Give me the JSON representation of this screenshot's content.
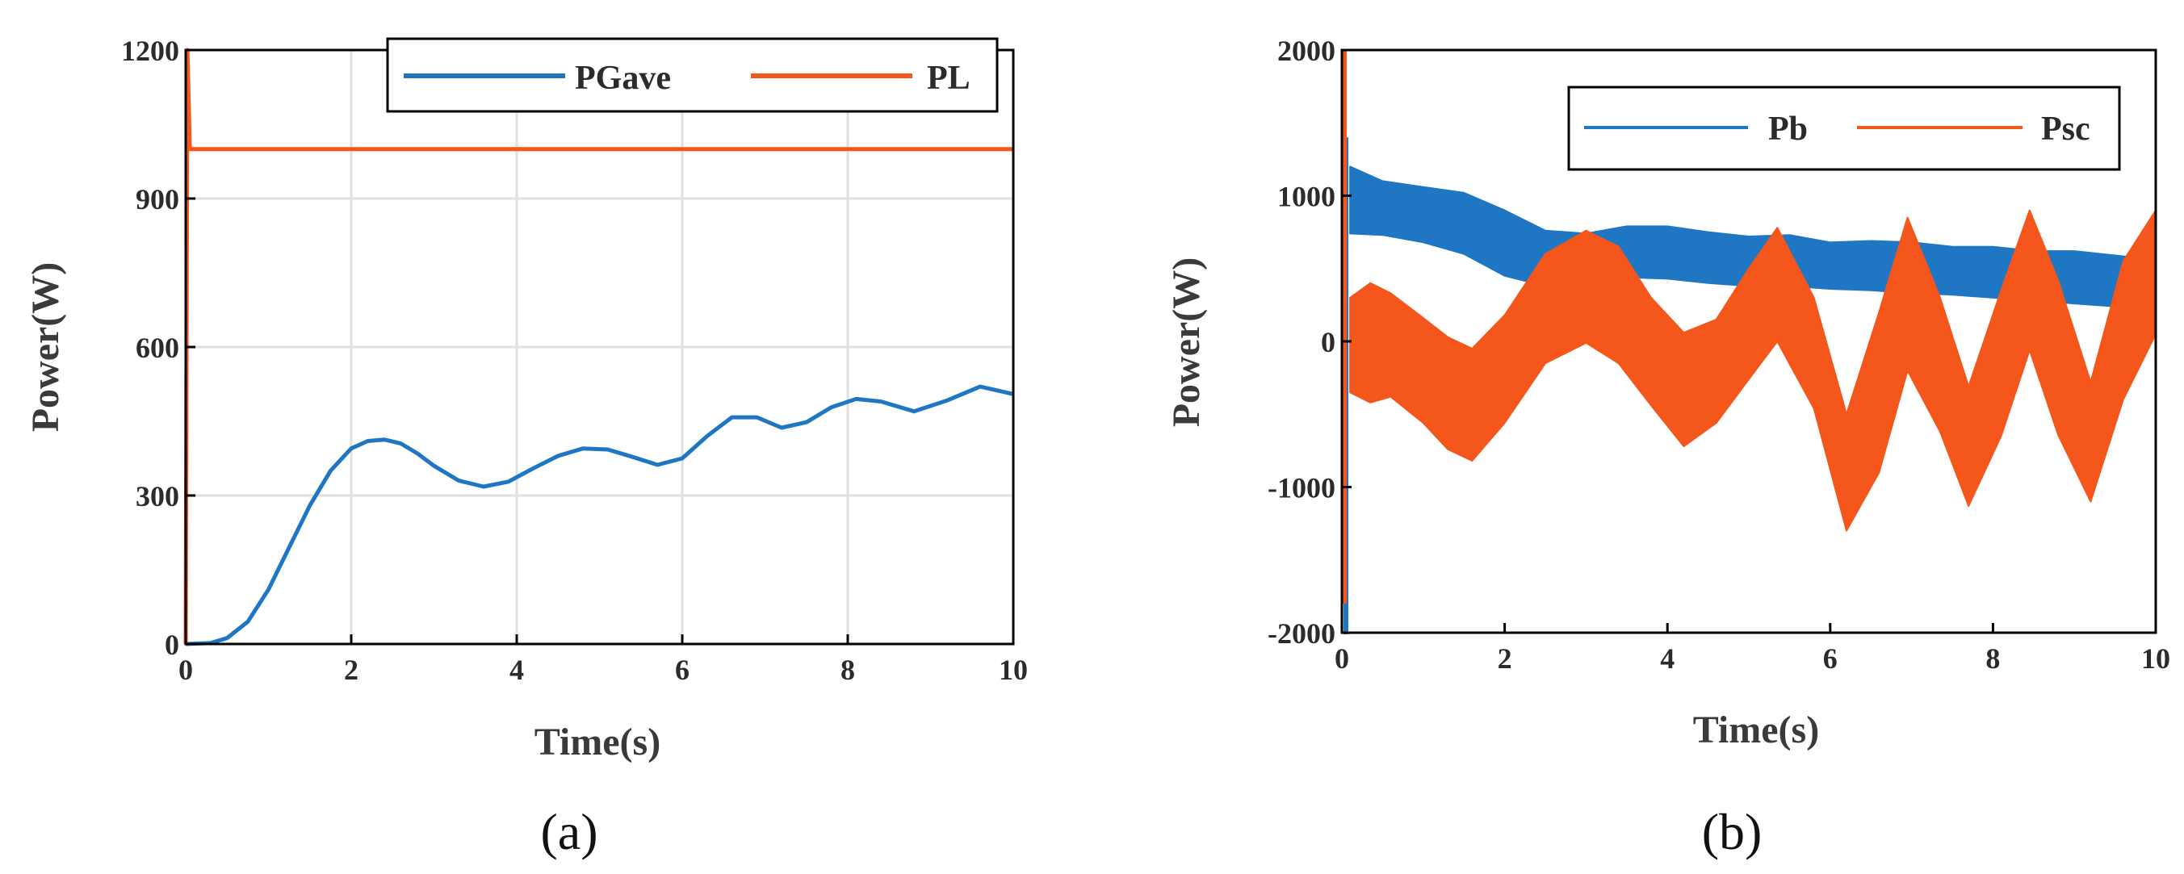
{
  "figure": {
    "colors": {
      "blue": "#1f77c4",
      "orange": "#f4561b",
      "grid": "#e0e0e0",
      "axis": "#000000"
    }
  },
  "chart_data": [
    {
      "type": "line",
      "panel_label": "(a)",
      "xlabel": "Time(s)",
      "ylabel": "Power(W)",
      "xlim": [
        0,
        10
      ],
      "ylim": [
        0,
        1200
      ],
      "xticks": [
        0,
        2,
        4,
        6,
        8,
        10
      ],
      "yticks": [
        0,
        300,
        600,
        900,
        1200
      ],
      "grid": true,
      "legend": {
        "placement": "top",
        "entries": [
          "PGave",
          "PL"
        ]
      },
      "series": [
        {
          "name": "PGave",
          "color": "#1f77c4",
          "x": [
            0,
            0.3,
            0.5,
            0.75,
            1.0,
            1.25,
            1.5,
            1.75,
            2.0,
            2.2,
            2.4,
            2.6,
            2.8,
            3.0,
            3.3,
            3.6,
            3.9,
            4.2,
            4.5,
            4.8,
            5.1,
            5.4,
            5.7,
            6.0,
            6.3,
            6.6,
            6.9,
            7.2,
            7.5,
            7.8,
            8.1,
            8.4,
            8.8,
            9.2,
            9.6,
            10.0
          ],
          "y": [
            0,
            2,
            12,
            45,
            110,
            195,
            280,
            350,
            395,
            410,
            413,
            405,
            385,
            360,
            330,
            318,
            328,
            355,
            380,
            395,
            393,
            378,
            362,
            375,
            420,
            458,
            458,
            437,
            448,
            478,
            495,
            490,
            470,
            492,
            520,
            505
          ]
        },
        {
          "name": "PL",
          "color": "#f4561b",
          "x": [
            0,
            0.02,
            0.05,
            0.1,
            10.0
          ],
          "y": [
            0,
            1200,
            1000,
            1000,
            1000
          ]
        }
      ]
    },
    {
      "type": "line",
      "panel_label": "(b)",
      "xlabel": "Time(s)",
      "ylabel": "Power(W)",
      "xlim": [
        0,
        10
      ],
      "ylim": [
        -2000,
        2000
      ],
      "xticks": [
        0,
        2,
        4,
        6,
        8,
        10
      ],
      "yticks": [
        -2000,
        -1000,
        0,
        1000,
        2000
      ],
      "grid": false,
      "legend": {
        "placement": "top-right",
        "entries": [
          "Pb",
          "Psc"
        ]
      },
      "series": [
        {
          "name": "Pb",
          "color": "#1f77c4",
          "x": [
            0.1,
            0.5,
            1.0,
            1.5,
            2.0,
            2.5,
            3.0,
            3.5,
            4.0,
            4.5,
            5.0,
            5.5,
            6.0,
            6.5,
            7.0,
            7.5,
            8.0,
            8.5,
            9.0,
            9.5,
            10.0
          ],
          "upper": [
            1200,
            1100,
            1060,
            1020,
            900,
            760,
            740,
            790,
            790,
            750,
            720,
            730,
            680,
            690,
            680,
            650,
            650,
            620,
            620,
            590,
            560
          ],
          "lower": [
            740,
            730,
            680,
            600,
            450,
            380,
            400,
            440,
            430,
            400,
            380,
            380,
            360,
            350,
            330,
            320,
            300,
            280,
            260,
            240,
            220
          ]
        },
        {
          "name": "Psc",
          "color": "#f4561b",
          "x": [
            0.1,
            0.35,
            0.6,
            1.0,
            1.3,
            1.6,
            2.0,
            2.5,
            3.0,
            3.4,
            3.8,
            4.2,
            4.6,
            5.0,
            5.35,
            5.8,
            6.2,
            6.6,
            6.95,
            7.35,
            7.7,
            8.1,
            8.45,
            8.8,
            9.2,
            9.6,
            10.0
          ],
          "upper": [
            300,
            400,
            330,
            160,
            30,
            -50,
            180,
            600,
            760,
            650,
            300,
            60,
            150,
            500,
            780,
            300,
            -500,
            200,
            850,
            300,
            -310,
            350,
            900,
            420,
            -280,
            550,
            900
          ],
          "lower": [
            -350,
            -420,
            -380,
            -560,
            -740,
            -820,
            -560,
            -150,
            -10,
            -150,
            -440,
            -720,
            -560,
            -260,
            0,
            -460,
            -1300,
            -900,
            -200,
            -620,
            -1130,
            -650,
            -60,
            -640,
            -1100,
            -400,
            50
          ]
        }
      ]
    }
  ]
}
